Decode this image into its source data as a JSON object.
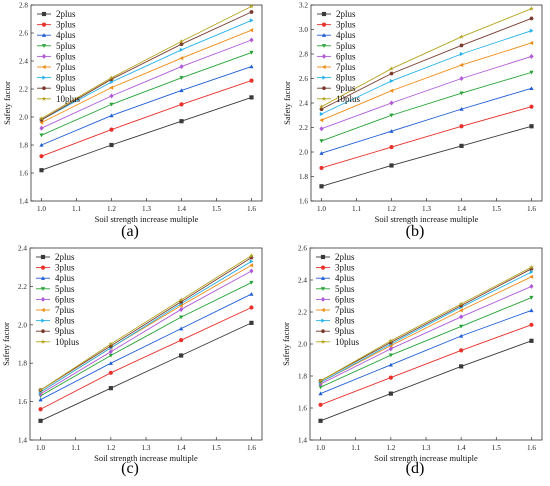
{
  "series_names": [
    "2plus",
    "3plus",
    "4plus",
    "5plus",
    "6plus",
    "7plus",
    "8plus",
    "9plus",
    "10plus"
  ],
  "series_colors": [
    "#3a3a3a",
    "#e8312a",
    "#1f5fd6",
    "#27a337",
    "#b05ad8",
    "#f08c16",
    "#27b3ea",
    "#7a3b2e",
    "#b5a421"
  ],
  "series_markers": [
    "square",
    "circle",
    "triangle-up",
    "triangle-down",
    "diamond",
    "triangle-left",
    "triangle-right",
    "hexagon",
    "star"
  ],
  "x_values": [
    1.0,
    1.2,
    1.4,
    1.6
  ],
  "chart_data": [
    {
      "panel": "(a)",
      "type": "line",
      "xlabel": "Soil strength increase multiple",
      "ylabel": "Safety factor",
      "xlim": [
        0.97,
        1.63
      ],
      "ylim": [
        1.4,
        2.8
      ],
      "xticks": [
        "1.0",
        "1.1",
        "1.2",
        "1.3",
        "1.4",
        "1.5",
        "1.6"
      ],
      "yticks": [
        "1.4",
        "1.6",
        "1.8",
        "2.0",
        "2.2",
        "2.4",
        "2.6",
        "2.8"
      ],
      "legend_position": "top-left",
      "series": [
        {
          "name": "2plus",
          "values": [
            1.62,
            1.8,
            1.97,
            2.14
          ]
        },
        {
          "name": "3plus",
          "values": [
            1.72,
            1.91,
            2.09,
            2.26
          ]
        },
        {
          "name": "4plus",
          "values": [
            1.8,
            2.01,
            2.19,
            2.36
          ]
        },
        {
          "name": "5plus",
          "values": [
            1.87,
            2.09,
            2.28,
            2.46
          ]
        },
        {
          "name": "6plus",
          "values": [
            1.92,
            2.15,
            2.36,
            2.55
          ]
        },
        {
          "name": "7plus",
          "values": [
            1.96,
            2.21,
            2.42,
            2.62
          ]
        },
        {
          "name": "8plus",
          "values": [
            1.98,
            2.25,
            2.48,
            2.69
          ]
        },
        {
          "name": "9plus",
          "values": [
            1.98,
            2.27,
            2.52,
            2.75
          ]
        },
        {
          "name": "10plus",
          "values": [
            1.99,
            2.28,
            2.54,
            2.79
          ]
        }
      ]
    },
    {
      "panel": "(b)",
      "type": "line",
      "xlabel": "Soil strength increase multiple",
      "ylabel": "Safety factor",
      "xlim": [
        0.97,
        1.63
      ],
      "ylim": [
        1.6,
        3.2
      ],
      "xticks": [
        "1.0",
        "1.1",
        "1.2",
        "1.3",
        "1.4",
        "1.5",
        "1.6"
      ],
      "yticks": [
        "1.6",
        "1.8",
        "2.0",
        "2.2",
        "2.4",
        "2.6",
        "2.8",
        "3.0",
        "3.2"
      ],
      "legend_position": "top-left",
      "series": [
        {
          "name": "2plus",
          "values": [
            1.72,
            1.89,
            2.05,
            2.21
          ]
        },
        {
          "name": "3plus",
          "values": [
            1.87,
            2.04,
            2.21,
            2.37
          ]
        },
        {
          "name": "4plus",
          "values": [
            1.99,
            2.17,
            2.35,
            2.52
          ]
        },
        {
          "name": "5plus",
          "values": [
            2.09,
            2.3,
            2.48,
            2.65
          ]
        },
        {
          "name": "6plus",
          "values": [
            2.19,
            2.4,
            2.6,
            2.78
          ]
        },
        {
          "name": "7plus",
          "values": [
            2.26,
            2.5,
            2.71,
            2.89
          ]
        },
        {
          "name": "8plus",
          "values": [
            2.31,
            2.58,
            2.8,
            2.99
          ]
        },
        {
          "name": "9plus",
          "values": [
            2.35,
            2.64,
            2.87,
            3.09
          ]
        },
        {
          "name": "10plus",
          "values": [
            2.37,
            2.68,
            2.94,
            3.17
          ]
        }
      ]
    },
    {
      "panel": "(c)",
      "type": "line",
      "xlabel": "Soil strength increase multiple",
      "ylabel": "Safety factor",
      "xlim": [
        0.97,
        1.63
      ],
      "ylim": [
        1.4,
        2.4
      ],
      "xticks": [
        "1.0",
        "1.1",
        "1.2",
        "1.3",
        "1.4",
        "1.5",
        "1.6"
      ],
      "yticks": [
        "1.4",
        "1.6",
        "1.8",
        "2.0",
        "2.2",
        "2.4"
      ],
      "legend_position": "top-left",
      "series": [
        {
          "name": "2plus",
          "values": [
            1.5,
            1.67,
            1.84,
            2.01
          ]
        },
        {
          "name": "3plus",
          "values": [
            1.56,
            1.75,
            1.92,
            2.09
          ]
        },
        {
          "name": "4plus",
          "values": [
            1.61,
            1.8,
            1.98,
            2.16
          ]
        },
        {
          "name": "5plus",
          "values": [
            1.63,
            1.84,
            2.04,
            2.22
          ]
        },
        {
          "name": "6plus",
          "values": [
            1.64,
            1.86,
            2.08,
            2.28
          ]
        },
        {
          "name": "7plus",
          "values": [
            1.65,
            1.88,
            2.1,
            2.31
          ]
        },
        {
          "name": "8plus",
          "values": [
            1.65,
            1.88,
            2.11,
            2.33
          ]
        },
        {
          "name": "9plus",
          "values": [
            1.66,
            1.89,
            2.12,
            2.35
          ]
        },
        {
          "name": "10plus",
          "values": [
            1.66,
            1.9,
            2.13,
            2.36
          ]
        }
      ]
    },
    {
      "panel": "(d)",
      "type": "line",
      "xlabel": "Soil strength increase multiple",
      "ylabel": "Safety factor",
      "xlim": [
        0.97,
        1.63
      ],
      "ylim": [
        1.4,
        2.6
      ],
      "xticks": [
        "1.0",
        "1.1",
        "1.2",
        "1.3",
        "1.4",
        "1.5",
        "1.6"
      ],
      "yticks": [
        "1.4",
        "1.6",
        "1.8",
        "2.0",
        "2.2",
        "2.4",
        "2.6"
      ],
      "legend_position": "top-left",
      "series": [
        {
          "name": "2plus",
          "values": [
            1.52,
            1.69,
            1.86,
            2.02
          ]
        },
        {
          "name": "3plus",
          "values": [
            1.62,
            1.79,
            1.96,
            2.12
          ]
        },
        {
          "name": "4plus",
          "values": [
            1.69,
            1.87,
            2.05,
            2.21
          ]
        },
        {
          "name": "5plus",
          "values": [
            1.73,
            1.93,
            2.11,
            2.29
          ]
        },
        {
          "name": "6plus",
          "values": [
            1.75,
            1.97,
            2.17,
            2.36
          ]
        },
        {
          "name": "7plus",
          "values": [
            1.76,
            1.99,
            2.21,
            2.42
          ]
        },
        {
          "name": "8plus",
          "values": [
            1.76,
            2.0,
            2.23,
            2.45
          ]
        },
        {
          "name": "9plus",
          "values": [
            1.77,
            2.01,
            2.24,
            2.47
          ]
        },
        {
          "name": "10plus",
          "values": [
            1.77,
            2.02,
            2.25,
            2.48
          ]
        }
      ]
    }
  ]
}
